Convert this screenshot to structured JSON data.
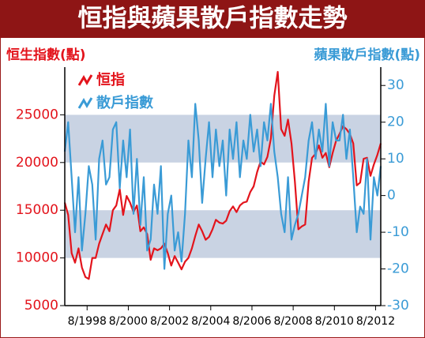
{
  "chart_data": {
    "type": "line",
    "title": "恒指與蘋果散戶指數走勢",
    "ylabel": "恒生指數(點)",
    "y2label": "蘋果散戶指數(點)",
    "x": [
      "1997-07",
      "1997-09",
      "1997-11",
      "1998-01",
      "1998-03",
      "1998-05",
      "1998-07",
      "1998-09",
      "1998-11",
      "1999-01",
      "1999-03",
      "1999-05",
      "1999-07",
      "1999-09",
      "1999-11",
      "2000-01",
      "2000-03",
      "2000-05",
      "2000-07",
      "2000-09",
      "2000-11",
      "2001-01",
      "2001-03",
      "2001-05",
      "2001-07",
      "2001-09",
      "2001-11",
      "2002-01",
      "2002-03",
      "2002-05",
      "2002-07",
      "2002-09",
      "2002-11",
      "2003-01",
      "2003-03",
      "2003-05",
      "2003-07",
      "2003-09",
      "2003-11",
      "2004-01",
      "2004-03",
      "2004-05",
      "2004-07",
      "2004-09",
      "2004-11",
      "2005-01",
      "2005-03",
      "2005-05",
      "2005-07",
      "2005-09",
      "2005-11",
      "2006-01",
      "2006-03",
      "2006-05",
      "2006-07",
      "2006-09",
      "2006-11",
      "2007-01",
      "2007-03",
      "2007-05",
      "2007-07",
      "2007-09",
      "2007-11",
      "2008-01",
      "2008-03",
      "2008-05",
      "2008-07",
      "2008-09",
      "2008-11",
      "2009-01",
      "2009-03",
      "2009-05",
      "2009-07",
      "2009-09",
      "2009-11",
      "2010-01",
      "2010-03",
      "2010-05",
      "2010-07",
      "2010-09",
      "2010-11",
      "2011-01",
      "2011-03",
      "2011-05",
      "2011-07",
      "2011-09",
      "2011-11",
      "2012-01",
      "2012-03",
      "2012-05",
      "2012-07",
      "2012-09",
      "2012-11"
    ],
    "series": [
      {
        "name": "恒指",
        "color": "#e3141c",
        "axis": "y",
        "values": [
          15800,
          14500,
          10500,
          9500,
          11000,
          9000,
          8000,
          7800,
          10000,
          10000,
          11500,
          12500,
          13500,
          12800,
          15000,
          15500,
          17200,
          14500,
          16500,
          15800,
          14800,
          15500,
          12800,
          13200,
          12500,
          9800,
          11000,
          10800,
          11000,
          11500,
          10500,
          9200,
          10200,
          9500,
          8800,
          9600,
          10000,
          11000,
          12300,
          13500,
          12800,
          11900,
          12200,
          13000,
          14000,
          13700,
          13600,
          13900,
          14900,
          15400,
          14800,
          15500,
          15800,
          15900,
          16900,
          17500,
          19000,
          20100,
          19800,
          20600,
          22500,
          27000,
          29500,
          23500,
          22800,
          24500,
          22000,
          18000,
          13000,
          13300,
          13500,
          18000,
          20500,
          20900,
          21800,
          20500,
          21000,
          19500,
          21000,
          22300,
          23000,
          23800,
          23500,
          23000,
          22000,
          17600,
          17900,
          20400,
          20500,
          18600,
          19800,
          20800,
          22000
        ]
      },
      {
        "name": "散戶指數",
        "color": "#3a9bd6",
        "axis": "y2",
        "values": [
          12,
          20,
          5,
          -10,
          5,
          -15,
          -5,
          8,
          3,
          -12,
          10,
          15,
          3,
          5,
          18,
          20,
          2,
          15,
          5,
          18,
          -5,
          10,
          -8,
          5,
          -15,
          -12,
          3,
          -5,
          8,
          -20,
          -5,
          0,
          -15,
          -10,
          -18,
          -5,
          15,
          5,
          25,
          15,
          -2,
          10,
          20,
          5,
          18,
          8,
          15,
          0,
          18,
          10,
          20,
          5,
          15,
          10,
          22,
          12,
          18,
          8,
          20,
          15,
          25,
          12,
          5,
          -5,
          -10,
          5,
          -12,
          -8,
          -5,
          0,
          5,
          15,
          20,
          10,
          18,
          12,
          25,
          8,
          20,
          15,
          15,
          22,
          10,
          18,
          5,
          -10,
          -3,
          -5,
          10,
          -12,
          5,
          0,
          8
        ]
      }
    ],
    "xlim": [
      "1997-07",
      "2012-11"
    ],
    "xticks": [
      {
        "value": "1998-08",
        "label": "8/1998"
      },
      {
        "value": "2000-08",
        "label": "8/2000"
      },
      {
        "value": "2002-08",
        "label": "8/2002"
      },
      {
        "value": "2004-08",
        "label": "8/2004"
      },
      {
        "value": "2006-08",
        "label": "8/2006"
      },
      {
        "value": "2008-08",
        "label": "8/2008"
      },
      {
        "value": "2010-08",
        "label": "8/2010"
      },
      {
        "value": "2012-08",
        "label": "8/2012"
      }
    ],
    "ylim": [
      5000,
      30000
    ],
    "yticks": [
      5000,
      10000,
      15000,
      20000,
      25000
    ],
    "y2lim": [
      -30,
      35
    ],
    "y2ticks": [
      -30,
      -20,
      -10,
      0,
      10,
      20,
      30
    ],
    "legend": "upper left",
    "grid": "bands"
  }
}
